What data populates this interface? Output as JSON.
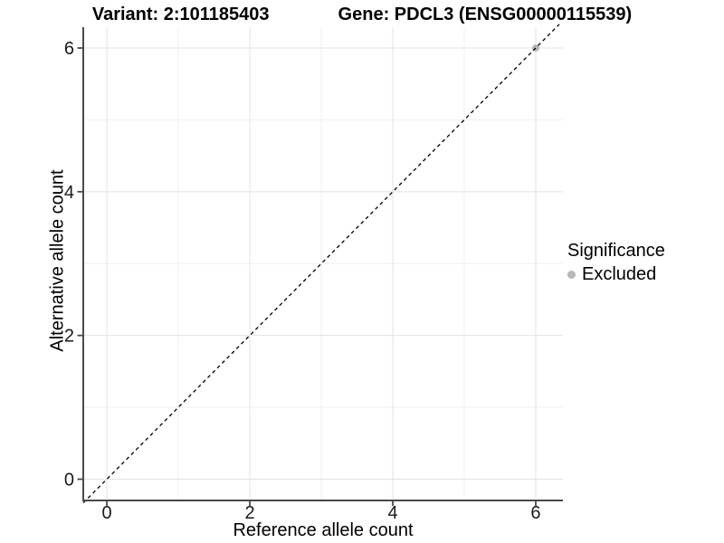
{
  "chart_data": {
    "type": "scatter",
    "title_left": "Variant: 2:101185403",
    "title_right": "Gene: PDCL3 (ENSG00000115539)",
    "xlabel": "Reference allele count",
    "ylabel": "Alternative allele count",
    "xlim": [
      -0.33,
      6.38
    ],
    "ylim": [
      -0.29,
      6.29
    ],
    "x_ticks": [
      0,
      2,
      4,
      6
    ],
    "y_ticks": [
      0,
      2,
      4,
      6
    ],
    "x_minor": [
      1,
      3,
      5
    ],
    "y_minor": [
      1,
      3,
      5
    ],
    "grid": true,
    "identity_line": {
      "slope": 1,
      "intercept": 0,
      "linetype": "dashed",
      "color": "#000000"
    },
    "series": [
      {
        "name": "Excluded",
        "color": "#b8b8b8",
        "points": [
          {
            "x": 6,
            "y": 6
          }
        ]
      }
    ],
    "legend": {
      "title": "Significance",
      "position": "right",
      "entries": [
        {
          "label": "Excluded",
          "color": "#b8b8b8"
        }
      ]
    },
    "colors": {
      "axis": "#4a4a4a",
      "tick_text": "#1a1a1a",
      "grid_major": "#e3e3e3",
      "grid_minor": "#f0f0f0",
      "background": "#ffffff"
    }
  }
}
